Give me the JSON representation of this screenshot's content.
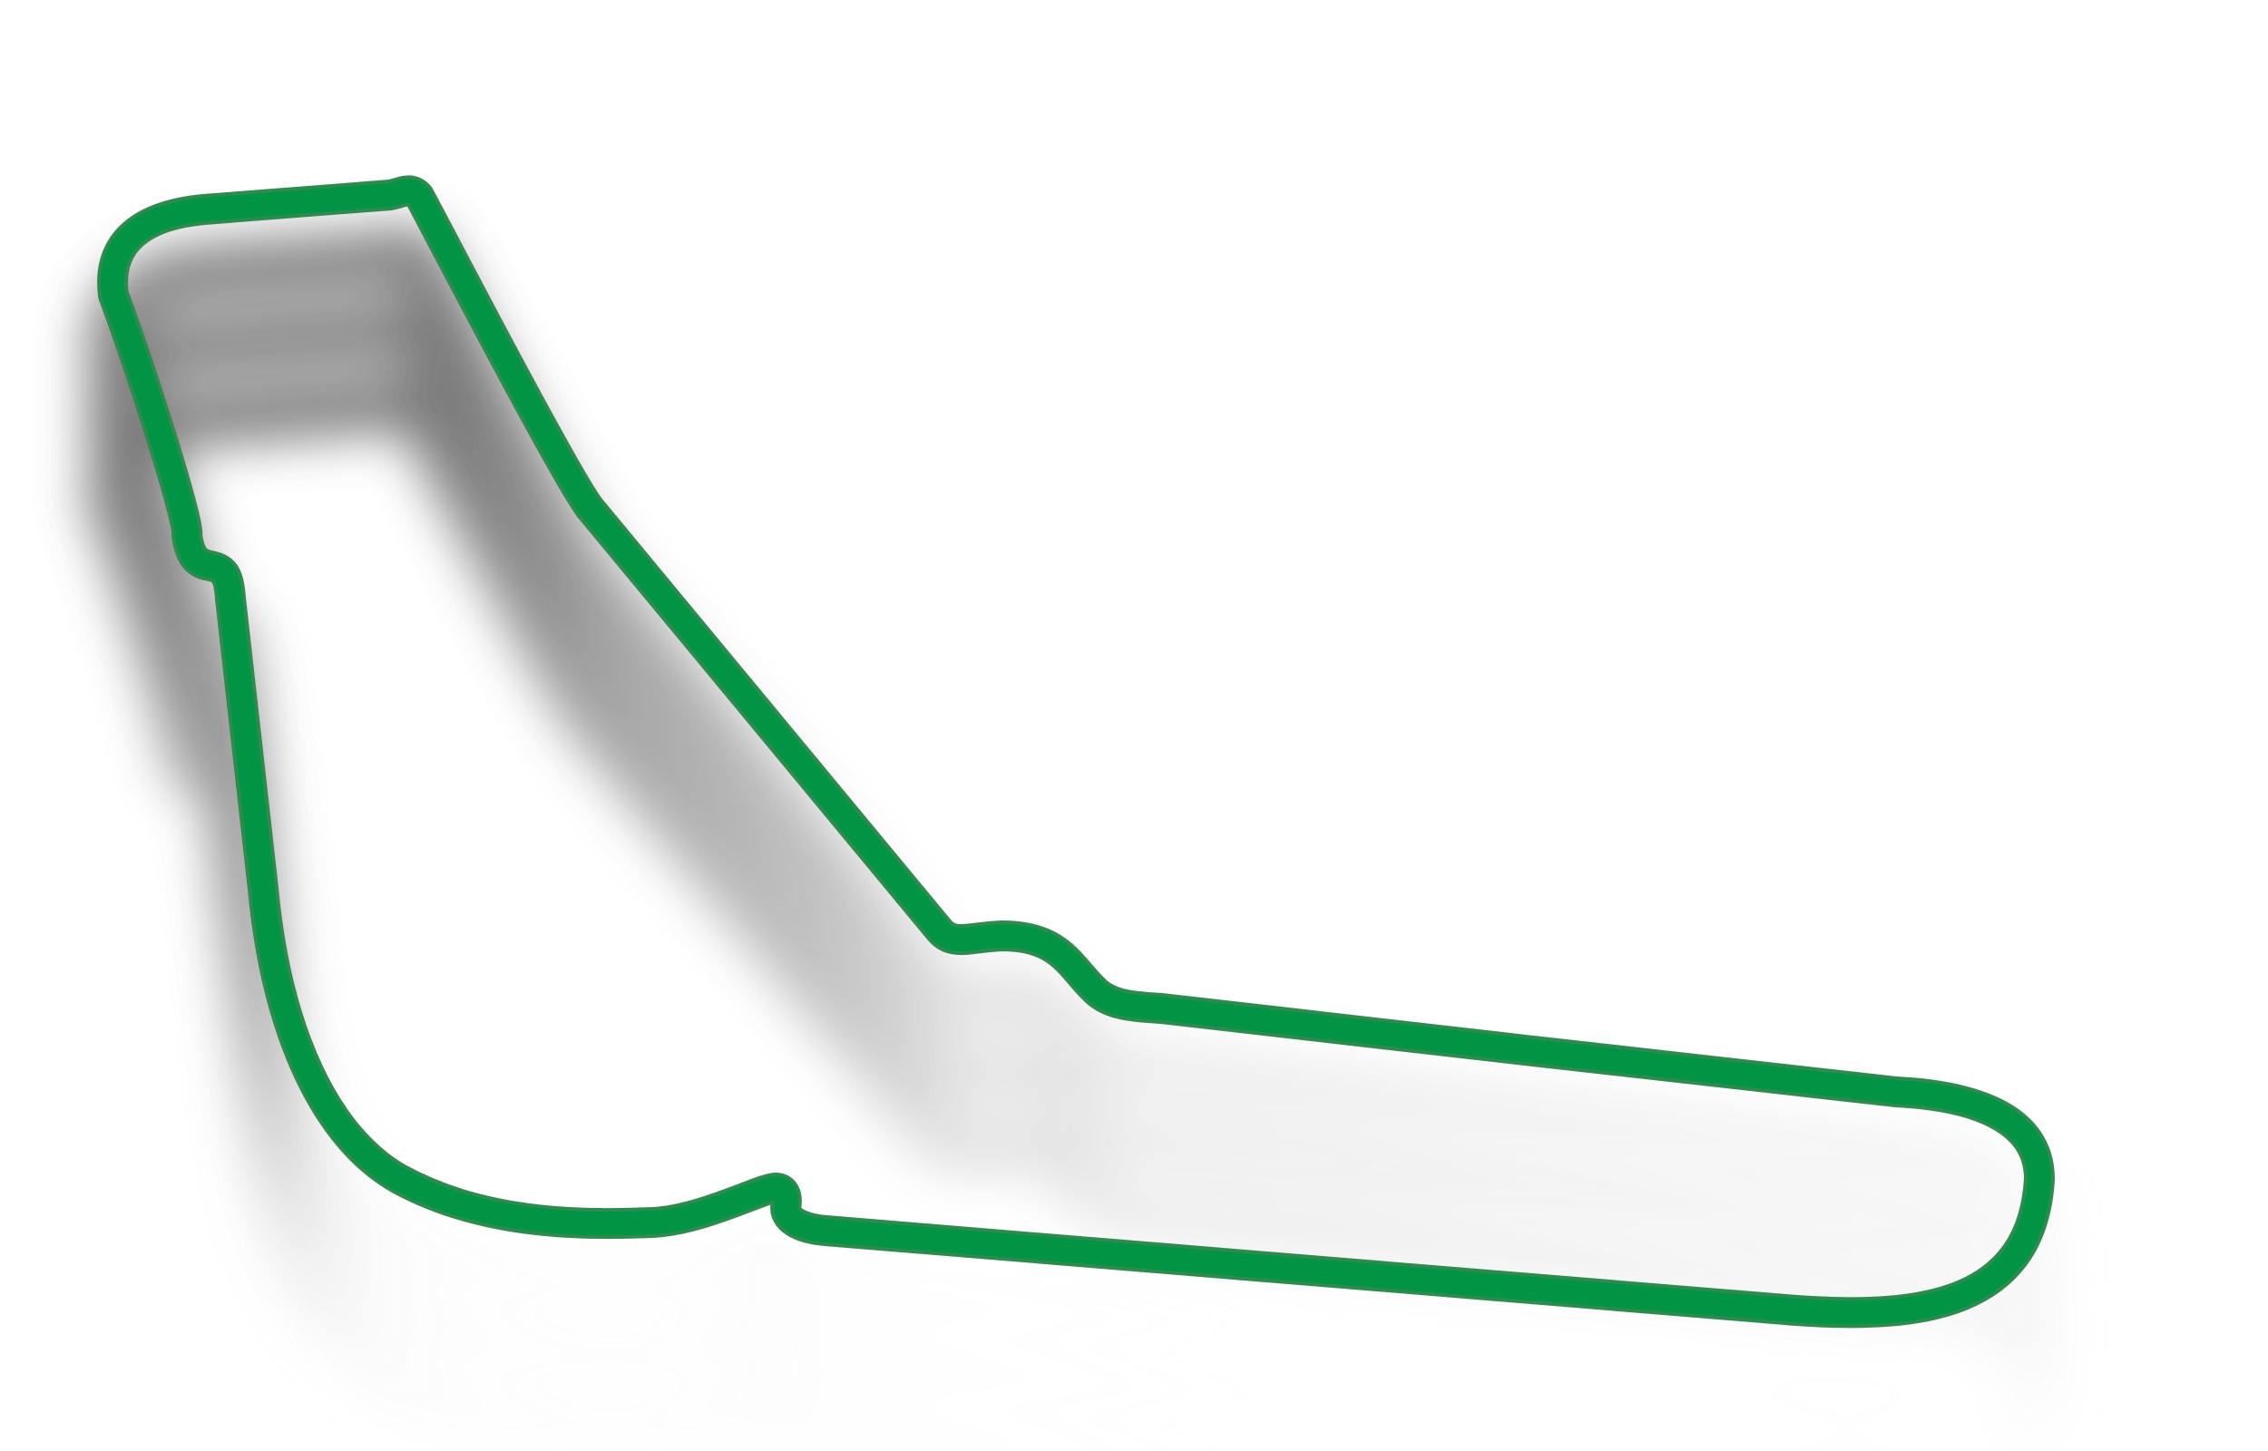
{
  "track": {
    "stroke_color": "#009444",
    "edge_color": "#2e8b4f",
    "shadow_color": "#6b6b6b",
    "background": "#ffffff"
  }
}
